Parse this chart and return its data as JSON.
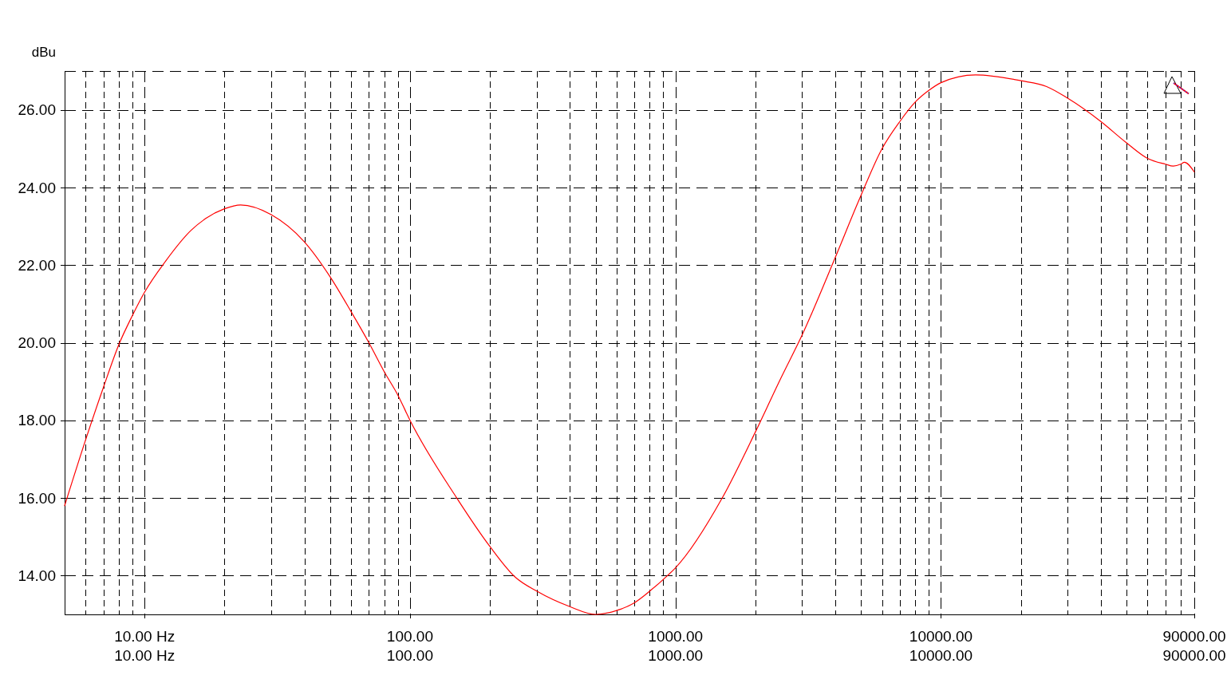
{
  "chart_data": {
    "type": "line",
    "ylabel": "dBu",
    "x": [
      5,
      6,
      7,
      8,
      9,
      10,
      12,
      15,
      17,
      20,
      23,
      30,
      40,
      50,
      60,
      70,
      80,
      90,
      100,
      150,
      200,
      250,
      300,
      400,
      500,
      600,
      700,
      800,
      933,
      1000,
      1500,
      2000,
      2500,
      3000,
      4000,
      5000,
      6000,
      7000,
      8000,
      9000,
      10000,
      13500,
      20000,
      25000,
      30000,
      40000,
      50000,
      60000,
      70000,
      75000,
      80000,
      82600,
      90000
    ],
    "series": [
      {
        "color": "#ff0000",
        "values": [
          15.8,
          17.5,
          18.85,
          19.95,
          20.7,
          21.3,
          22.1,
          22.9,
          23.2,
          23.45,
          23.55,
          23.3,
          22.6,
          21.7,
          20.8,
          20.0,
          19.25,
          18.65,
          18.0,
          16.0,
          14.75,
          13.95,
          13.6,
          13.2,
          13.0,
          13.1,
          13.3,
          13.6,
          14.0,
          14.2,
          16.0,
          17.7,
          19.1,
          20.2,
          22.2,
          23.8,
          25.0,
          25.7,
          26.2,
          26.5,
          26.7,
          26.9,
          26.75,
          26.6,
          26.3,
          25.7,
          25.15,
          24.75,
          24.6,
          24.55,
          24.6,
          24.65,
          24.4
        ]
      }
    ],
    "xlim": [
      5,
      90000
    ],
    "ylim": [
      13,
      27
    ],
    "log": "x",
    "grid": true,
    "marker": "none",
    "line_style": "solid",
    "xticks": [
      {
        "value": 6,
        "label": null
      },
      {
        "value": 7,
        "label": null
      },
      {
        "value": 8,
        "label": null
      },
      {
        "value": 9,
        "label": null
      },
      {
        "value": 10,
        "label": "10.00 Hz"
      },
      {
        "value": 20,
        "label": null
      },
      {
        "value": 30,
        "label": null
      },
      {
        "value": 40,
        "label": null
      },
      {
        "value": 50,
        "label": null
      },
      {
        "value": 60,
        "label": null
      },
      {
        "value": 70,
        "label": null
      },
      {
        "value": 80,
        "label": null
      },
      {
        "value": 90,
        "label": null
      },
      {
        "value": 100,
        "label": "100.00"
      },
      {
        "value": 200,
        "label": null
      },
      {
        "value": 300,
        "label": null
      },
      {
        "value": 400,
        "label": null
      },
      {
        "value": 500,
        "label": null
      },
      {
        "value": 600,
        "label": null
      },
      {
        "value": 700,
        "label": null
      },
      {
        "value": 800,
        "label": null
      },
      {
        "value": 900,
        "label": null
      },
      {
        "value": 1000,
        "label": "1000.00"
      },
      {
        "value": 2000,
        "label": null
      },
      {
        "value": 3000,
        "label": null
      },
      {
        "value": 4000,
        "label": null
      },
      {
        "value": 5000,
        "label": null
      },
      {
        "value": 6000,
        "label": null
      },
      {
        "value": 7000,
        "label": null
      },
      {
        "value": 8000,
        "label": null
      },
      {
        "value": 9000,
        "label": null
      },
      {
        "value": 10000,
        "label": "10000.00"
      },
      {
        "value": 20000,
        "label": null
      },
      {
        "value": 30000,
        "label": null
      },
      {
        "value": 40000,
        "label": null
      },
      {
        "value": 50000,
        "label": null
      },
      {
        "value": 60000,
        "label": null
      },
      {
        "value": 70000,
        "label": null
      },
      {
        "value": 80000,
        "label": null
      },
      {
        "value": 90000,
        "label": "90000.00"
      }
    ],
    "yticks": [
      {
        "value": 14,
        "label": "14.00"
      },
      {
        "value": 16,
        "label": "16.00"
      },
      {
        "value": 18,
        "label": "18.00"
      },
      {
        "value": 20,
        "label": "20.00"
      },
      {
        "value": 22,
        "label": "22.00"
      },
      {
        "value": 24,
        "label": "24.00"
      },
      {
        "value": 26,
        "label": "26.00"
      }
    ]
  }
}
